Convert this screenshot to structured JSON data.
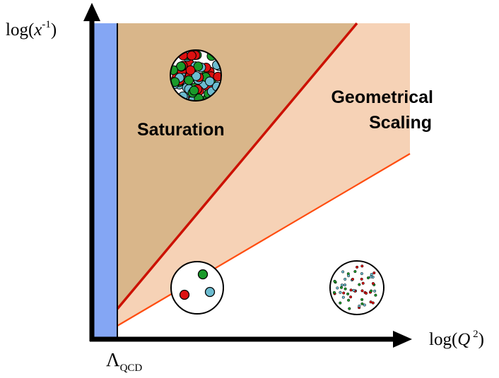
{
  "axes": {
    "y_label": {
      "prefix": "log(",
      "var": "x",
      "sup": "-1",
      "suffix": ")"
    },
    "x_label": {
      "prefix": "log(",
      "var": "Q",
      "sup": " 2",
      "suffix": ")"
    },
    "lambda_label": {
      "symbol": "Λ",
      "sub": "QCD"
    }
  },
  "regions": {
    "saturation": {
      "label": "Saturation"
    },
    "geometrical_scaling": {
      "line1": "Geometrical",
      "line2": "Scaling"
    }
  },
  "colors": {
    "qcd_strip": "#84a6f4",
    "saturation_fill": "#d9b68a",
    "scaling_fill": "#f6d2b6",
    "saturation_line": "#cc1100",
    "scaling_line": "#ff4d10",
    "axis": "#000000",
    "gluon_red": "#dd1111",
    "gluon_green": "#1a9a2a",
    "gluon_blue": "#6cbcd0"
  }
}
